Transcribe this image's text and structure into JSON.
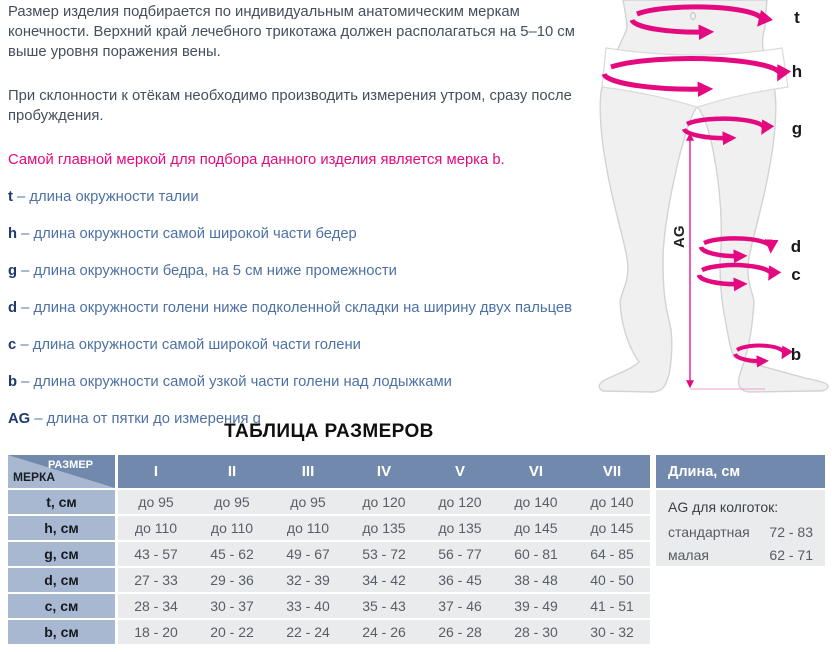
{
  "intro": {
    "paragraph1": "Размер изделия подбирается по индивидуальным анатомическим меркам конечности. Верхний край лечебного трикотажа должен располагаться на 5–10 см выше уровня поражения вены.",
    "paragraph2": "При склонности к отёкам необходимо производить измерения утром, сразу после пробуждения.",
    "highlight": "Самой главной меркой для подбора данного изделия является мерка b."
  },
  "definitions": [
    {
      "key": "t",
      "text": "– длина окружности талии"
    },
    {
      "key": "h",
      "text": "– длина окружности самой широкой части бедер"
    },
    {
      "key": "g",
      "text": "– длина окружности бедра, на 5 см ниже промежности"
    },
    {
      "key": "d",
      "text": "– длина окружности голени ниже подколенной складки на ширину двух пальцев"
    },
    {
      "key": "c",
      "text": "– длина окружности самой широкой части голени"
    },
    {
      "key": "b",
      "text": "– длина окружности самой узкой части голени над лодыжками"
    },
    {
      "key": "AG",
      "text": "– длина от пятки до измерения g"
    }
  ],
  "figure": {
    "labels": {
      "t": "t",
      "h": "h",
      "g": "g",
      "d": "d",
      "c": "c",
      "b": "b"
    },
    "ag": "AG"
  },
  "size_table": {
    "title": "ТАБЛИЦА РАЗМЕРОВ",
    "corner_top": "РАЗМЕР",
    "corner_bottom": "МЕРКА",
    "columns": [
      "I",
      "II",
      "III",
      "IV",
      "V",
      "VI",
      "VII"
    ],
    "rows": [
      {
        "label": "t, см",
        "values": [
          "до 95",
          "до 95",
          "до 95",
          "до 120",
          "до 120",
          "до 140",
          "до 140"
        ]
      },
      {
        "label": "h, см",
        "values": [
          "до 110",
          "до 110",
          "до 110",
          "до 135",
          "до 135",
          "до 145",
          "до 145"
        ]
      },
      {
        "label": "g, см",
        "values": [
          "43 - 57",
          "45 - 62",
          "49 - 67",
          "53 - 72",
          "56 - 77",
          "60 - 81",
          "64 - 85"
        ]
      },
      {
        "label": "d, см",
        "values": [
          "27 - 33",
          "29 - 36",
          "32 - 39",
          "34 - 42",
          "36 - 45",
          "38 - 48",
          "40 - 50"
        ]
      },
      {
        "label": "c, см",
        "values": [
          "28 - 34",
          "30 - 37",
          "33 - 40",
          "35 - 43",
          "37 - 46",
          "39 - 49",
          "41 - 51"
        ]
      },
      {
        "label": "b, см",
        "values": [
          "18 - 20",
          "20 - 22",
          "22 - 24",
          "24 - 26",
          "26 - 28",
          "28 - 30",
          "30 - 32"
        ]
      }
    ]
  },
  "length_panel": {
    "header": "Длина, см",
    "subtitle": "AG для колготок:",
    "rows": [
      {
        "label": "стандартная",
        "value": "72 - 83"
      },
      {
        "label": "малая",
        "value": "62 - 71"
      }
    ]
  },
  "colors": {
    "accent_pink": "#e5097f",
    "header_blue": "#7289ae",
    "label_blue": "#a9b8d1",
    "row_gray": "#e9ebed",
    "text_blue": "#4e71a5",
    "key_navy": "#1d3a6e",
    "body_text": "#454f5e"
  }
}
